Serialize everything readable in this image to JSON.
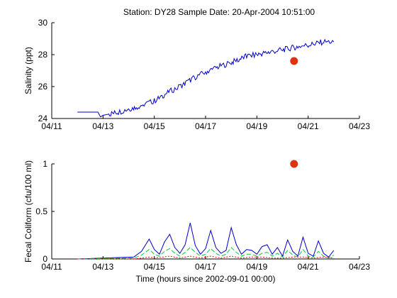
{
  "figure": {
    "title": "Station: DY28  Sample Date: 20-Apr-2004 10:51:00",
    "xlabel": "Time (hours since 2002-09-01 00:00)"
  },
  "chart_data": [
    {
      "type": "line",
      "name": "salinity-panel",
      "ylabel": "Salinity (ppt)",
      "xlim": [
        11,
        23
      ],
      "ylim": [
        24,
        30
      ],
      "x_ticks": [
        11,
        13,
        15,
        17,
        19,
        21,
        23
      ],
      "x_tick_labels": [
        "04/11",
        "04/13",
        "04/15",
        "04/17",
        "04/19",
        "04/21",
        "04/23"
      ],
      "y_ticks": [
        24,
        26,
        28,
        30
      ],
      "y_tick_labels": [
        "24",
        "26",
        "28",
        "30"
      ],
      "series": [
        {
          "color": "#0000cc",
          "x": [
            12.0,
            12.5,
            12.8,
            12.9,
            13.0,
            13.3,
            13.6,
            14.0,
            14.3,
            14.6,
            15.0,
            15.3,
            15.6,
            16.0,
            16.3,
            16.6,
            17.0,
            17.3,
            17.6,
            18.0,
            18.3,
            18.6,
            19.0,
            19.3,
            19.6,
            20.0,
            20.3,
            20.6,
            21.0,
            21.3,
            21.6,
            22.0
          ],
          "y": [
            24.4,
            24.4,
            24.4,
            24.1,
            24.2,
            24.3,
            24.4,
            24.6,
            24.7,
            24.9,
            25.1,
            25.4,
            25.7,
            26.0,
            26.3,
            26.6,
            26.9,
            27.1,
            27.3,
            27.5,
            27.7,
            27.9,
            28.0,
            28.1,
            28.2,
            28.3,
            28.4,
            28.5,
            28.6,
            28.7,
            28.8,
            28.8
          ],
          "wiggle": 0.18
        }
      ],
      "sample_points": [
        {
          "x": 20.45,
          "y": 27.6,
          "color": "#dd3311"
        }
      ]
    },
    {
      "type": "line",
      "name": "fecal-panel",
      "ylabel": "Fecal Coliform (cfu/100 ml)",
      "xlim": [
        11,
        23
      ],
      "ylim": [
        0,
        1
      ],
      "x_ticks": [
        11,
        13,
        15,
        17,
        19,
        21,
        23
      ],
      "x_tick_labels": [
        "04/11",
        "04/13",
        "04/15",
        "04/17",
        "04/19",
        "04/21",
        "04/23"
      ],
      "y_ticks": [
        0,
        0.5,
        1
      ],
      "y_tick_labels": [
        "0",
        "0.5",
        "1"
      ],
      "series": [
        {
          "color": "#0000cc",
          "x": [
            12.0,
            14.2,
            14.5,
            14.8,
            15.0,
            15.2,
            15.4,
            15.6,
            15.8,
            16.0,
            16.2,
            16.4,
            16.6,
            16.8,
            17.0,
            17.2,
            17.4,
            17.6,
            17.8,
            18.0,
            18.2,
            18.4,
            18.6,
            18.8,
            19.0,
            19.2,
            19.4,
            19.6,
            19.8,
            20.0,
            20.2,
            20.4,
            20.6,
            20.8,
            21.0,
            21.2,
            21.4,
            21.6,
            21.8,
            22.0
          ],
          "y": [
            0.0,
            0.02,
            0.08,
            0.21,
            0.1,
            0.05,
            0.18,
            0.26,
            0.12,
            0.06,
            0.15,
            0.38,
            0.14,
            0.05,
            0.11,
            0.3,
            0.12,
            0.06,
            0.09,
            0.33,
            0.15,
            0.05,
            0.1,
            0.09,
            0.05,
            0.13,
            0.15,
            0.05,
            0.12,
            0.03,
            0.2,
            0.08,
            0.03,
            0.23,
            0.06,
            0.03,
            0.19,
            0.06,
            0.02,
            0.09
          ]
        },
        {
          "color": "#00cc33",
          "dash": "6,3",
          "x": [
            12.0,
            14.2,
            14.5,
            14.8,
            15.0,
            15.2,
            15.4,
            15.6,
            15.8,
            16.0,
            16.2,
            16.4,
            16.6,
            16.8,
            17.0,
            17.2,
            17.4,
            17.6,
            17.8,
            18.0,
            18.2,
            18.4,
            18.6,
            18.8,
            19.0,
            19.2,
            19.4,
            19.6,
            19.8,
            20.0,
            20.2,
            20.4,
            20.6,
            20.8,
            21.0,
            21.2,
            21.4,
            21.6,
            21.8,
            22.0
          ],
          "y": [
            0.0,
            0.01,
            0.04,
            0.1,
            0.05,
            0.03,
            0.08,
            0.11,
            0.06,
            0.03,
            0.07,
            0.12,
            0.07,
            0.03,
            0.05,
            0.11,
            0.06,
            0.03,
            0.05,
            0.12,
            0.07,
            0.03,
            0.05,
            0.05,
            0.03,
            0.06,
            0.07,
            0.03,
            0.06,
            0.02,
            0.09,
            0.04,
            0.02,
            0.1,
            0.03,
            0.02,
            0.08,
            0.03,
            0.01,
            0.04
          ]
        },
        {
          "color": "#ff0000",
          "dash": "2,2",
          "x": [
            12.0,
            14.2,
            14.8,
            15.0,
            15.6,
            16.0,
            16.4,
            16.8,
            17.2,
            17.6,
            18.0,
            18.4,
            18.8,
            19.2,
            19.6,
            20.0,
            20.4,
            20.8,
            21.2,
            21.6,
            22.0
          ],
          "y": [
            0.0,
            0.0,
            0.02,
            0.01,
            0.03,
            0.01,
            0.03,
            0.01,
            0.03,
            0.01,
            0.03,
            0.01,
            0.02,
            0.02,
            0.01,
            0.01,
            0.02,
            0.02,
            0.01,
            0.02,
            0.01
          ]
        }
      ],
      "sample_points": [
        {
          "x": 20.45,
          "y": 1.0,
          "color": "#dd3311"
        }
      ]
    }
  ]
}
